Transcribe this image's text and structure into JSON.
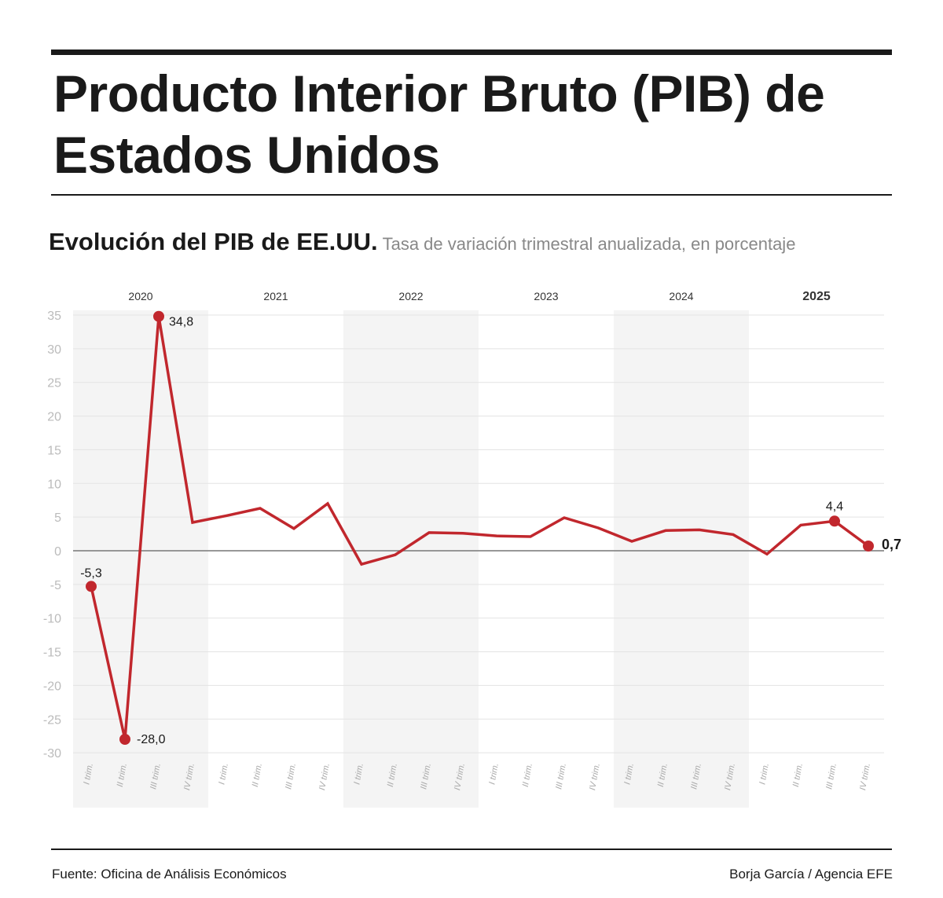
{
  "header": {
    "title": "Producto Interior Bruto (PIB) de Estados Unidos"
  },
  "subtitle": {
    "main": "Evolución del PIB de EE.UU.",
    "desc": "Tasa de variación trimestral anualizada, en porcentaje"
  },
  "footer": {
    "source": "Fuente: Oficina de Análisis Económicos",
    "credit": "Borja García / Agencia EFE"
  },
  "colors": {
    "line": "#c1272d",
    "band": "#f4f4f4",
    "grid": "#e3e3e3",
    "zero": "#777777"
  },
  "chart_data": {
    "type": "line",
    "ylim": [
      -30,
      35
    ],
    "yticks": [
      35,
      30,
      25,
      20,
      15,
      10,
      5,
      0,
      -5,
      -10,
      -15,
      -20,
      -25,
      -30
    ],
    "grid": true,
    "years": [
      "2020",
      "2021",
      "2022",
      "2023",
      "2024",
      "2025"
    ],
    "highlight_year": "2025",
    "quarter_labels": [
      "I trim.",
      "II trim.",
      "III trim.",
      "IV trim."
    ],
    "x": [
      "2020-I",
      "2020-II",
      "2020-III",
      "2020-IV",
      "2021-I",
      "2021-II",
      "2021-III",
      "2021-IV",
      "2022-I",
      "2022-II",
      "2022-III",
      "2022-IV",
      "2023-I",
      "2023-II",
      "2023-III",
      "2023-IV",
      "2024-I",
      "2024-II",
      "2024-III",
      "2024-IV",
      "2025-I",
      "2025-II",
      "2025-III",
      "2025-IV"
    ],
    "values": [
      -5.3,
      -28.0,
      34.8,
      4.2,
      5.2,
      6.3,
      3.3,
      7.0,
      -2.0,
      -0.6,
      2.7,
      2.6,
      2.2,
      2.1,
      4.9,
      3.4,
      1.4,
      3.0,
      3.1,
      2.4,
      -0.5,
      3.8,
      4.4,
      0.7
    ],
    "data_labels": [
      {
        "index": 0,
        "text": "-5,3"
      },
      {
        "index": 1,
        "text": "-28,0"
      },
      {
        "index": 2,
        "text": "34,8"
      },
      {
        "index": 22,
        "text": "4,4"
      },
      {
        "index": 23,
        "text": "0,7"
      }
    ]
  }
}
